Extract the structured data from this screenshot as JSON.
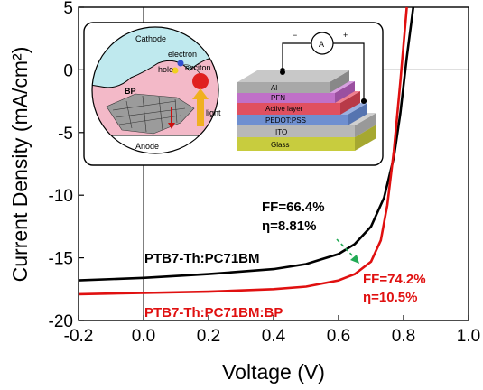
{
  "chart_data": {
    "type": "line",
    "xlabel": "Voltage (V)",
    "ylabel": "Current Density (mA/cm²)",
    "xlim": [
      -0.2,
      1.0
    ],
    "ylim": [
      -20,
      5
    ],
    "xticks": [
      "-0.2",
      "0.0",
      "0.2",
      "0.4",
      "0.6",
      "0.8",
      "1.0"
    ],
    "yticks": [
      "5",
      "0",
      "-5",
      "-10",
      "-15",
      "-20"
    ],
    "series": [
      {
        "name": "PTB7-Th:PC71BM",
        "color": "#000000",
        "x": [
          -0.2,
          0.0,
          0.2,
          0.4,
          0.5,
          0.6,
          0.65,
          0.7,
          0.74,
          0.77,
          0.79,
          0.81,
          0.83
        ],
        "y": [
          -16.8,
          -16.6,
          -16.3,
          -15.9,
          -15.5,
          -14.7,
          -13.9,
          -12.5,
          -10.2,
          -7.0,
          -3.5,
          1.0,
          5.0
        ]
      },
      {
        "name": "PTB7-Th:PC71BM:BP",
        "color": "#e01010",
        "x": [
          -0.2,
          0.0,
          0.2,
          0.4,
          0.5,
          0.6,
          0.65,
          0.7,
          0.73,
          0.75,
          0.77,
          0.79,
          0.81
        ],
        "y": [
          -17.9,
          -17.8,
          -17.7,
          -17.5,
          -17.3,
          -16.8,
          -16.3,
          -15.3,
          -13.6,
          -10.8,
          -6.5,
          -1.0,
          5.0
        ]
      }
    ],
    "annotations": [
      {
        "text": "FF=66.4%",
        "color": "#000000"
      },
      {
        "text": "η=8.81%",
        "color": "#000000"
      },
      {
        "text": "FF=74.2%",
        "color": "#e01010"
      },
      {
        "text": "η=10.5%",
        "color": "#e01010"
      }
    ]
  },
  "inset": {
    "cathode": "Cathode",
    "anode": "Anode",
    "electron": "electron",
    "hole": "hole",
    "exciton": "exciton",
    "bp": "BP",
    "light": "light",
    "ammeter": "A",
    "minus": "−",
    "plus": "+",
    "layers": [
      "Al",
      "PFN",
      "Active layer",
      "PEDOT:PSS",
      "ITO",
      "Glass"
    ]
  }
}
